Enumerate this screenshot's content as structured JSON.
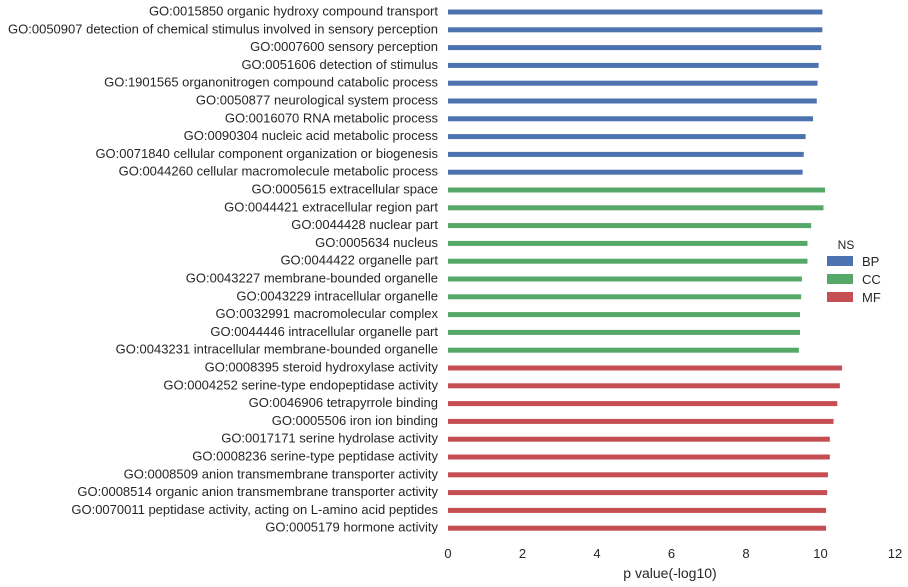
{
  "chart_data": {
    "type": "bar",
    "orientation": "horizontal",
    "xlabel": "p value(-log10)",
    "ylabel": "",
    "xlim": [
      0,
      12
    ],
    "xticks": [
      0,
      2,
      4,
      6,
      8,
      10,
      12
    ],
    "grid": false,
    "legend": {
      "title": "NS",
      "placement": "center-right",
      "entries": [
        {
          "name": "BP",
          "color": "#4c72b0"
        },
        {
          "name": "CC",
          "color": "#55a868"
        },
        {
          "name": "MF",
          "color": "#c44e52"
        }
      ]
    },
    "bars": [
      {
        "label": "GO:0015850 organic hydroxy compound transport",
        "group": "BP",
        "value": 10.05
      },
      {
        "label": "GO:0050907 detection of chemical stimulus involved in sensory perception",
        "group": "BP",
        "value": 10.05
      },
      {
        "label": "GO:0007600 sensory perception",
        "group": "BP",
        "value": 10.02
      },
      {
        "label": "GO:0051606 detection of stimulus",
        "group": "BP",
        "value": 9.95
      },
      {
        "label": "GO:1901565 organonitrogen compound catabolic process",
        "group": "BP",
        "value": 9.92
      },
      {
        "label": "GO:0050877 neurological system process",
        "group": "BP",
        "value": 9.9
      },
      {
        "label": "GO:0016070 RNA metabolic process",
        "group": "BP",
        "value": 9.8
      },
      {
        "label": "GO:0090304 nucleic acid metabolic process",
        "group": "BP",
        "value": 9.6
      },
      {
        "label": "GO:0071840 cellular component organization or biogenesis",
        "group": "BP",
        "value": 9.55
      },
      {
        "label": "GO:0044260 cellular macromolecule metabolic process",
        "group": "BP",
        "value": 9.52
      },
      {
        "label": "GO:0005615 extracellular space",
        "group": "CC",
        "value": 10.12
      },
      {
        "label": "GO:0044421 extracellular region part",
        "group": "CC",
        "value": 10.08
      },
      {
        "label": "GO:0044428 nuclear part",
        "group": "CC",
        "value": 9.75
      },
      {
        "label": "GO:0005634 nucleus",
        "group": "CC",
        "value": 9.65
      },
      {
        "label": "GO:0044422 organelle part",
        "group": "CC",
        "value": 9.65
      },
      {
        "label": "GO:0043227 membrane-bounded organelle",
        "group": "CC",
        "value": 9.5
      },
      {
        "label": "GO:0043229 intracellular organelle",
        "group": "CC",
        "value": 9.48
      },
      {
        "label": "GO:0032991 macromolecular complex",
        "group": "CC",
        "value": 9.45
      },
      {
        "label": "GO:0044446 intracellular organelle part",
        "group": "CC",
        "value": 9.45
      },
      {
        "label": "GO:0043231 intracellular membrane-bounded organelle",
        "group": "CC",
        "value": 9.42
      },
      {
        "label": "GO:0008395 steroid hydroxylase activity",
        "group": "MF",
        "value": 10.58
      },
      {
        "label": "GO:0004252 serine-type endopeptidase activity",
        "group": "MF",
        "value": 10.52
      },
      {
        "label": "GO:0046906 tetrapyrrole binding",
        "group": "MF",
        "value": 10.45
      },
      {
        "label": "GO:0005506 iron ion binding",
        "group": "MF",
        "value": 10.35
      },
      {
        "label": "GO:0017171 serine hydrolase activity",
        "group": "MF",
        "value": 10.25
      },
      {
        "label": "GO:0008236 serine-type peptidase activity",
        "group": "MF",
        "value": 10.25
      },
      {
        "label": "GO:0008509 anion transmembrane transporter activity",
        "group": "MF",
        "value": 10.2
      },
      {
        "label": "GO:0008514 organic anion transmembrane transporter activity",
        "group": "MF",
        "value": 10.18
      },
      {
        "label": "GO:0070011 peptidase activity, acting on L-amino acid peptides",
        "group": "MF",
        "value": 10.15
      },
      {
        "label": "GO:0005179 hormone activity",
        "group": "MF",
        "value": 10.15
      }
    ]
  }
}
